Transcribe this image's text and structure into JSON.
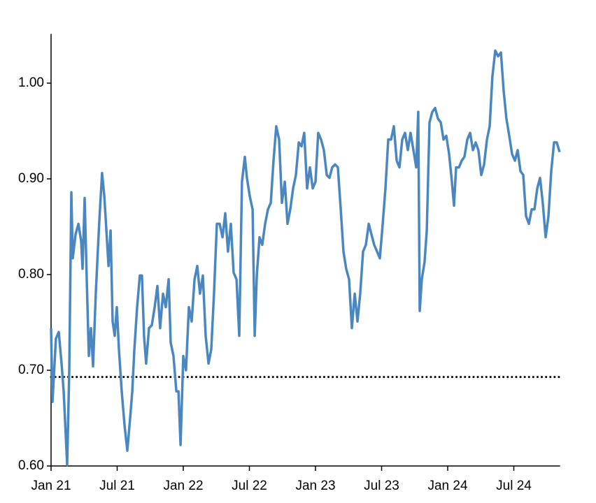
{
  "chart_data": {
    "type": "line",
    "xlim": [
      0,
      46.2
    ],
    "xticks": [
      {
        "value": 0,
        "label": "Jan 21"
      },
      {
        "value": 6,
        "label": "Jul 21"
      },
      {
        "value": 12,
        "label": "Jan 22"
      },
      {
        "value": 18,
        "label": "Jul 22"
      },
      {
        "value": 24,
        "label": "Jan 23"
      },
      {
        "value": 30,
        "label": "Jul 23"
      },
      {
        "value": 36,
        "label": "Jan 24"
      },
      {
        "value": 42,
        "label": "Jul 24"
      }
    ],
    "ylim": [
      0.6,
      1.05
    ],
    "yticks": [
      {
        "value": 0.6,
        "label": "0.60"
      },
      {
        "value": 0.7,
        "label": "0.70"
      },
      {
        "value": 0.8,
        "label": "0.80"
      },
      {
        "value": 0.9,
        "label": "0.90"
      },
      {
        "value": 1.0,
        "label": "1.00"
      }
    ],
    "reference_line": {
      "value": 0.693,
      "color": "#000000"
    },
    "series": [
      {
        "color": "#4a86c0",
        "x": [
          0,
          0.13,
          0.32,
          0.44,
          0.7,
          0.95,
          1.14,
          1.33,
          1.46,
          1.65,
          1.84,
          1.97,
          2.22,
          2.48,
          2.73,
          2.86,
          3.05,
          3.24,
          3.43,
          3.62,
          3.81,
          4.06,
          4.32,
          4.44,
          4.63,
          4.83,
          5.02,
          5.21,
          5.4,
          5.59,
          5.78,
          5.97,
          6.16,
          6.41,
          6.67,
          6.92,
          7.17,
          7.37,
          7.56,
          7.81,
          8.06,
          8.25,
          8.44,
          8.63,
          8.89,
          9.14,
          9.4,
          9.65,
          9.9,
          10.16,
          10.41,
          10.67,
          10.86,
          11.11,
          11.37,
          11.56,
          11.75,
          12.0,
          12.25,
          12.51,
          12.76,
          13.02,
          13.27,
          13.52,
          13.78,
          14.03,
          14.29,
          14.54,
          14.79,
          15.05,
          15.3,
          15.56,
          15.81,
          16.06,
          16.32,
          16.57,
          16.83,
          17.08,
          17.33,
          17.59,
          17.78,
          18.03,
          18.29,
          18.48,
          18.67,
          18.92,
          19.17,
          19.43,
          19.68,
          19.94,
          20.19,
          20.44,
          20.7,
          20.95,
          21.21,
          21.46,
          21.71,
          21.97,
          22.22,
          22.48,
          22.73,
          22.98,
          23.24,
          23.49,
          23.75,
          24.0,
          24.25,
          24.51,
          24.76,
          25.02,
          25.27,
          25.52,
          25.78,
          26.03,
          26.29,
          26.54,
          26.79,
          27.05,
          27.3,
          27.56,
          27.81,
          28.06,
          28.32,
          28.57,
          28.83,
          29.08,
          29.33,
          29.59,
          29.84,
          30.1,
          30.35,
          30.6,
          30.86,
          31.11,
          31.37,
          31.62,
          31.87,
          32.13,
          32.38,
          32.63,
          32.89,
          33.14,
          33.33,
          33.46,
          33.65,
          33.9,
          34.1,
          34.35,
          34.6,
          34.86,
          35.11,
          35.37,
          35.62,
          35.87,
          36.13,
          36.38,
          36.57,
          36.76,
          37.02,
          37.27,
          37.52,
          37.78,
          38.03,
          38.29,
          38.54,
          38.79,
          39.05,
          39.3,
          39.56,
          39.81,
          40.06,
          40.32,
          40.57,
          40.83,
          41.08,
          41.33,
          41.59,
          41.84,
          42.1,
          42.35,
          42.6,
          42.86,
          43.11,
          43.37,
          43.62,
          43.87,
          44.13,
          44.38,
          44.63,
          44.89,
          45.14,
          45.4,
          45.65,
          45.9,
          46.16
        ],
        "values": [
          0.744,
          0.667,
          0.707,
          0.733,
          0.74,
          0.707,
          0.678,
          0.634,
          0.601,
          0.7,
          0.886,
          0.817,
          0.842,
          0.853,
          0.835,
          0.806,
          0.88,
          0.795,
          0.715,
          0.744,
          0.704,
          0.78,
          0.842,
          0.868,
          0.906,
          0.882,
          0.846,
          0.809,
          0.846,
          0.751,
          0.736,
          0.766,
          0.722,
          0.678,
          0.642,
          0.616,
          0.649,
          0.678,
          0.722,
          0.766,
          0.799,
          0.799,
          0.736,
          0.707,
          0.744,
          0.747,
          0.766,
          0.788,
          0.744,
          0.78,
          0.766,
          0.795,
          0.729,
          0.715,
          0.678,
          0.678,
          0.622,
          0.715,
          0.7,
          0.766,
          0.751,
          0.795,
          0.809,
          0.78,
          0.799,
          0.736,
          0.707,
          0.722,
          0.78,
          0.853,
          0.853,
          0.839,
          0.864,
          0.824,
          0.853,
          0.802,
          0.795,
          0.736,
          0.897,
          0.923,
          0.901,
          0.882,
          0.868,
          0.736,
          0.799,
          0.839,
          0.831,
          0.853,
          0.868,
          0.875,
          0.919,
          0.955,
          0.941,
          0.875,
          0.897,
          0.853,
          0.868,
          0.89,
          0.904,
          0.938,
          0.934,
          0.948,
          0.89,
          0.912,
          0.89,
          0.897,
          0.948,
          0.941,
          0.93,
          0.904,
          0.901,
          0.912,
          0.915,
          0.912,
          0.868,
          0.824,
          0.806,
          0.795,
          0.744,
          0.78,
          0.751,
          0.78,
          0.824,
          0.831,
          0.853,
          0.842,
          0.831,
          0.824,
          0.817,
          0.853,
          0.89,
          0.941,
          0.941,
          0.955,
          0.919,
          0.912,
          0.941,
          0.948,
          0.93,
          0.948,
          0.93,
          0.912,
          0.97,
          0.762,
          0.795,
          0.813,
          0.846,
          0.959,
          0.97,
          0.974,
          0.963,
          0.959,
          0.941,
          0.945,
          0.926,
          0.897,
          0.872,
          0.912,
          0.912,
          0.919,
          0.923,
          0.941,
          0.948,
          0.93,
          0.938,
          0.93,
          0.904,
          0.915,
          0.941,
          0.955,
          1.007,
          1.034,
          1.028,
          1.032,
          0.992,
          0.963,
          0.945,
          0.926,
          0.919,
          0.93,
          0.908,
          0.904,
          0.861,
          0.853,
          0.868,
          0.868,
          0.89,
          0.901,
          0.875,
          0.839,
          0.861,
          0.908,
          0.938,
          0.938,
          0.928
        ]
      }
    ]
  }
}
